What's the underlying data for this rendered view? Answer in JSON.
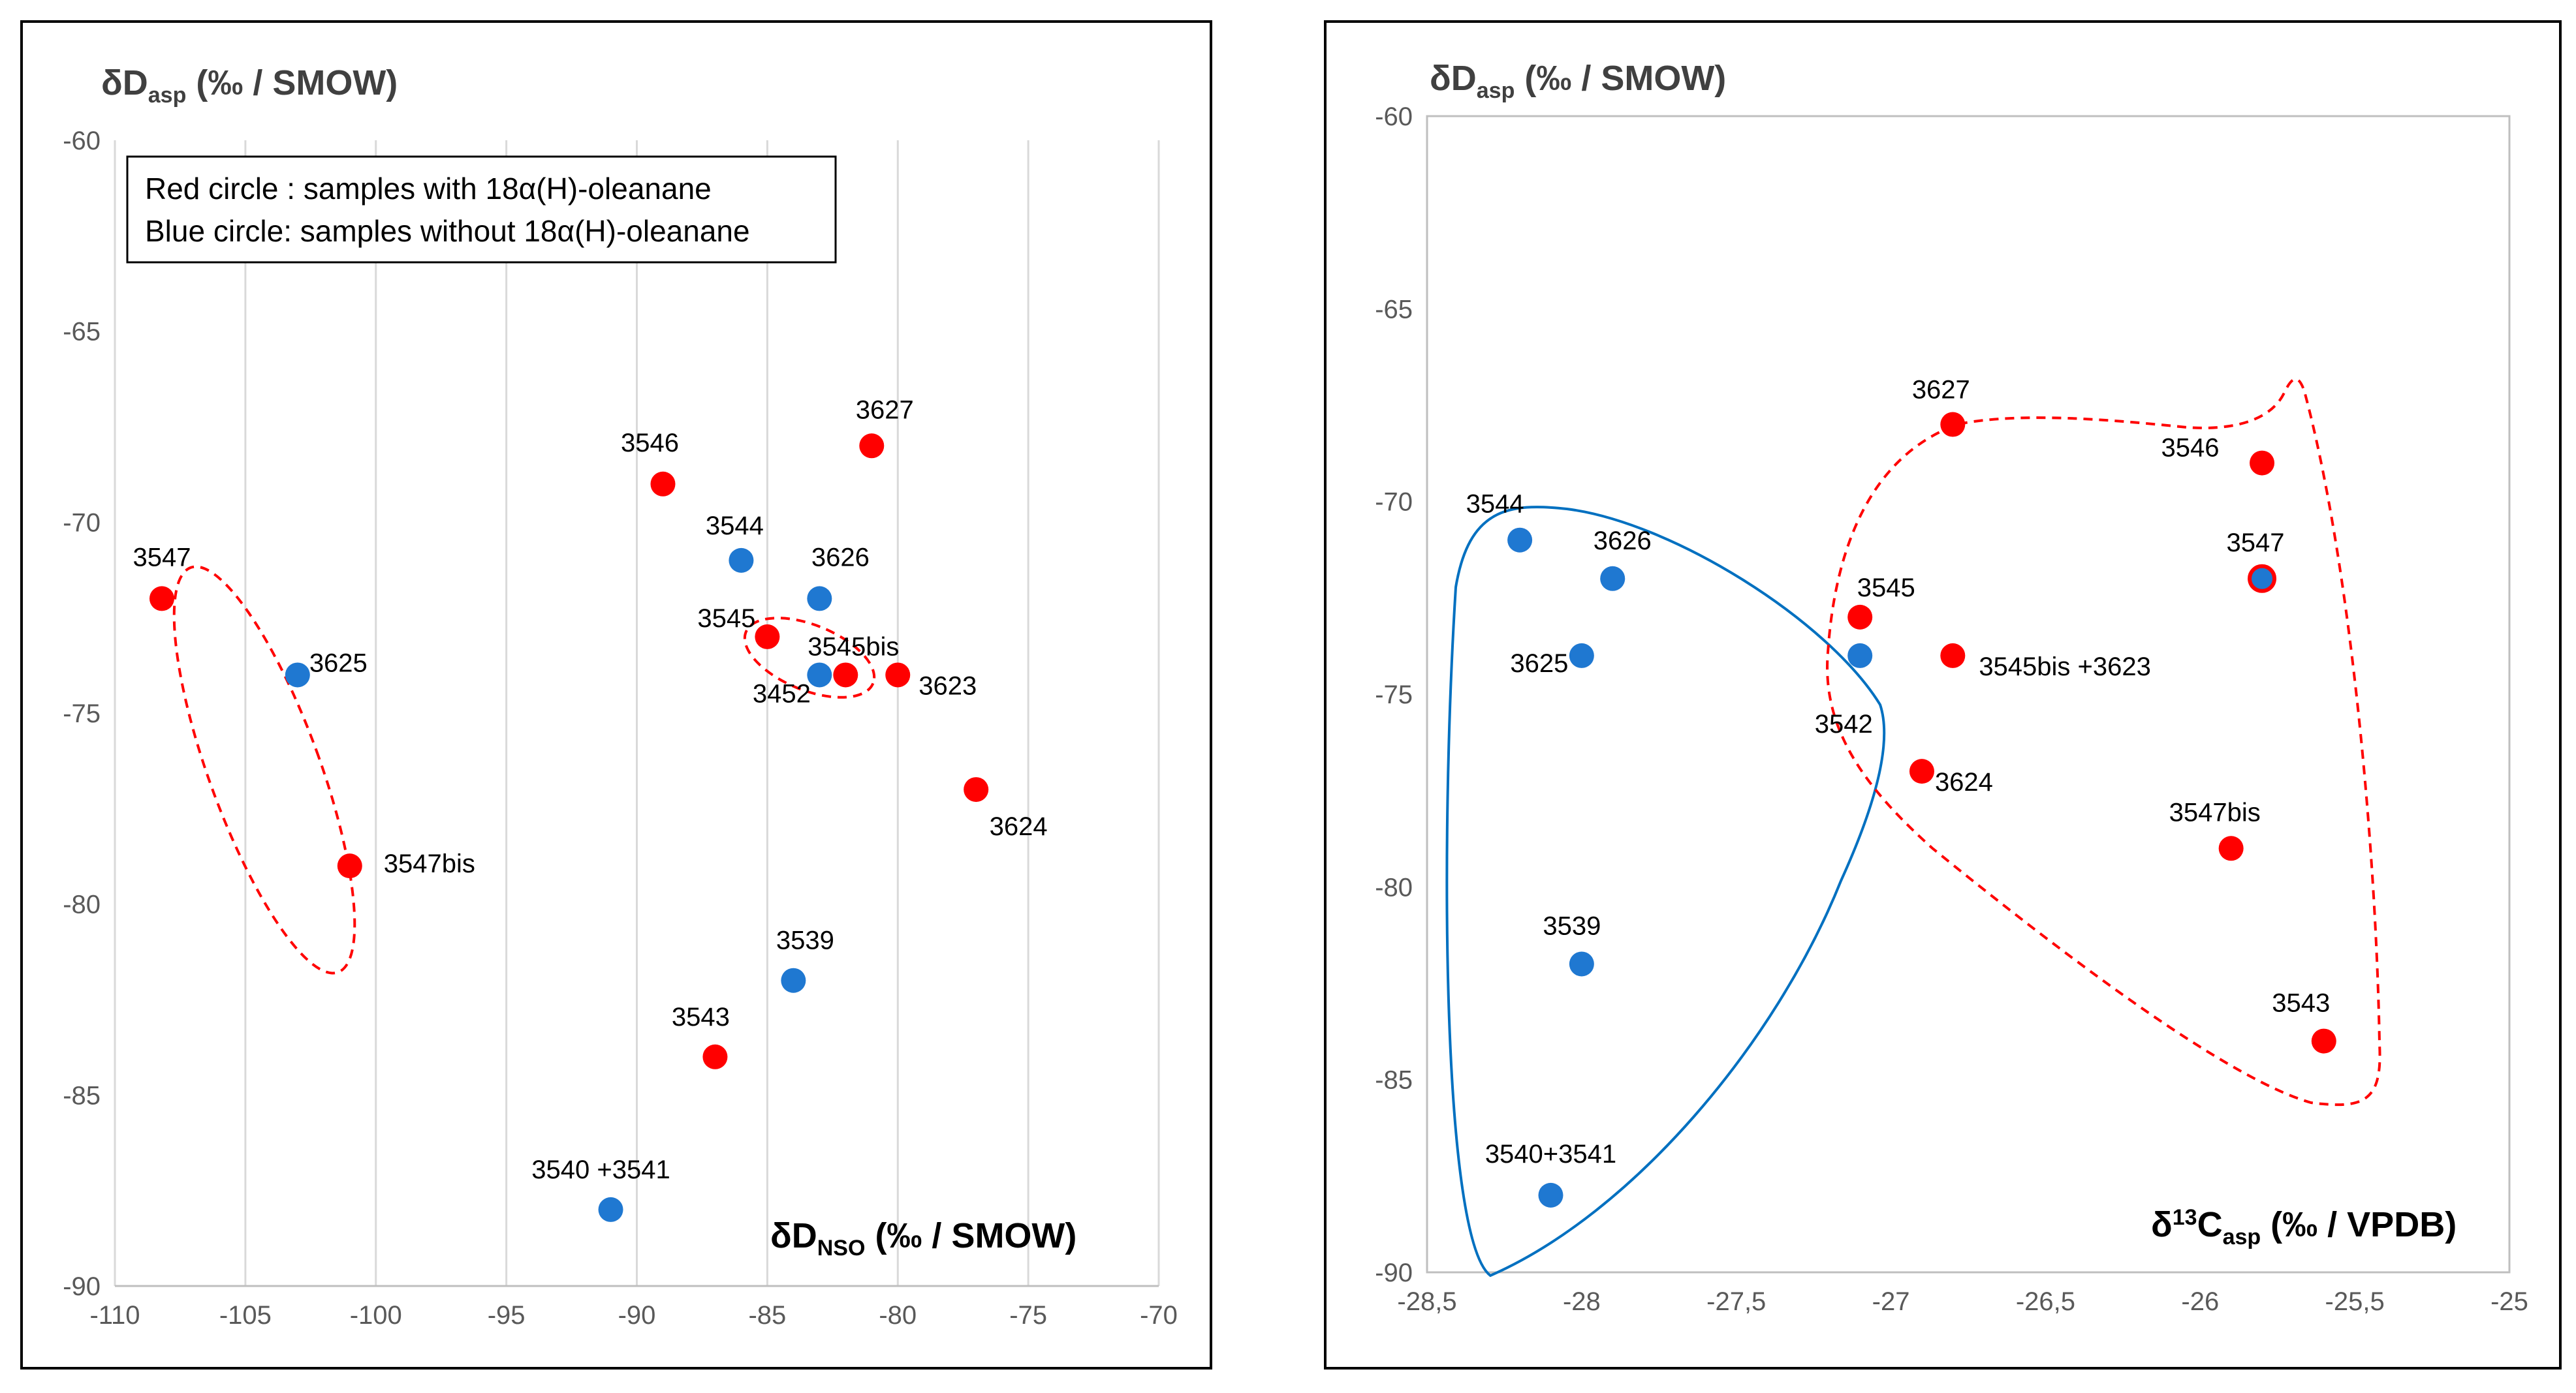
{
  "colors": {
    "red": "#ff0000",
    "blue": "#1f78d1",
    "blue_line": "#0070c0",
    "grid": "#d9d9d9",
    "frame": "#000000"
  },
  "legend": {
    "line1": "Red circle : samples with 18α(H)-oleanane",
    "line2": "Blue circle: samples without 18α(H)-oleanane"
  },
  "chart_data": [
    {
      "type": "scatter",
      "y_title": {
        "main": "δD",
        "sub": "asp",
        "unit": " (‰ / SMOW)"
      },
      "x_title": {
        "main": "δD",
        "sub": "NSO",
        "unit": " (‰ / SMOW)"
      },
      "xlim": [
        -110,
        -70
      ],
      "ylim": [
        -90,
        -60
      ],
      "x_ticks": [
        "-110",
        "-105",
        "-100",
        "-95",
        "-90",
        "-85",
        "-80",
        "-75",
        "-70"
      ],
      "y_ticks": [
        "-60",
        "-65",
        "-70",
        "-75",
        "-80",
        "-85",
        "-90"
      ],
      "grid": "vertical",
      "points": [
        {
          "label": "3547",
          "x": -108.2,
          "y": -72,
          "color": "red"
        },
        {
          "label": "3625",
          "x": -103,
          "y": -74,
          "color": "blue"
        },
        {
          "label": "3547bis",
          "x": -101,
          "y": -79,
          "color": "red"
        },
        {
          "label": "3546",
          "x": -89,
          "y": -69,
          "color": "red"
        },
        {
          "label": "3544",
          "x": -86,
          "y": -71,
          "color": "blue"
        },
        {
          "label": "3626",
          "x": -83,
          "y": -72,
          "color": "blue"
        },
        {
          "label": "3627",
          "x": -81,
          "y": -68,
          "color": "red"
        },
        {
          "label": "3545",
          "x": -85,
          "y": -73,
          "color": "red"
        },
        {
          "label": "3452",
          "x": -83,
          "y": -74,
          "color": "blue"
        },
        {
          "label": "3545bis",
          "x": -82,
          "y": -74,
          "color": "red"
        },
        {
          "label": "3623",
          "x": -80,
          "y": -74,
          "color": "red"
        },
        {
          "label": "3624",
          "x": -77,
          "y": -77,
          "color": "red"
        },
        {
          "label": "3539",
          "x": -84,
          "y": -82,
          "color": "blue"
        },
        {
          "label": "3543",
          "x": -87,
          "y": -84,
          "color": "red"
        },
        {
          "label": "3540 +3541",
          "x": -91,
          "y": -88,
          "color": "blue"
        }
      ]
    },
    {
      "type": "scatter",
      "y_title": {
        "main": "δD",
        "sub": "asp",
        "unit": " (‰ / SMOW)"
      },
      "x_title": {
        "main": "δ",
        "sup": "13",
        "mid": "C",
        "sub": "asp",
        "unit": " (‰ / VPDB)"
      },
      "xlim": [
        -28.5,
        -25
      ],
      "ylim": [
        -90,
        -60
      ],
      "x_ticks": [
        "-28,5",
        "-28",
        "-27,5",
        "-27",
        "-26,5",
        "-26",
        "-25,5",
        "-25"
      ],
      "y_ticks": [
        "-60",
        "-65",
        "-70",
        "-75",
        "-80",
        "-85",
        "-90"
      ],
      "grid": "none",
      "points": [
        {
          "label": "3544",
          "x": -28.2,
          "y": -71,
          "color": "blue"
        },
        {
          "label": "3626",
          "x": -27.9,
          "y": -72,
          "color": "blue"
        },
        {
          "label": "3625",
          "x": -28,
          "y": -74,
          "color": "blue"
        },
        {
          "label": "3539",
          "x": -28,
          "y": -82,
          "color": "blue"
        },
        {
          "label": "3540+3541",
          "x": -28.1,
          "y": -88,
          "color": "blue"
        },
        {
          "label": "3542",
          "x": -27.1,
          "y": -74,
          "color": "blue"
        },
        {
          "label": "3545",
          "x": -27.1,
          "y": -73,
          "color": "red"
        },
        {
          "label": "3627",
          "x": -26.8,
          "y": -68,
          "color": "red"
        },
        {
          "label": "3545bis +3623",
          "x": -26.8,
          "y": -74,
          "color": "red"
        },
        {
          "label": "3624",
          "x": -26.9,
          "y": -77,
          "color": "red"
        },
        {
          "label": "3546",
          "x": -25.8,
          "y": -69,
          "color": "red"
        },
        {
          "label": "3547",
          "x": -25.8,
          "y": -72,
          "color": "red"
        },
        {
          "label": "3547bis",
          "x": -25.9,
          "y": -79,
          "color": "red"
        },
        {
          "label": "3543",
          "x": -25.6,
          "y": -84,
          "color": "red"
        }
      ]
    }
  ]
}
